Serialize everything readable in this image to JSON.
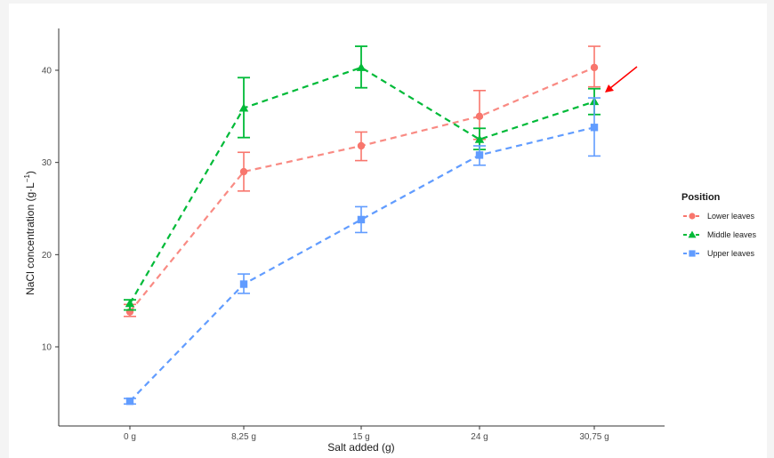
{
  "chart_data": {
    "type": "line",
    "xlabel": "Salt added (g)",
    "ylabel": "NaCl  concentration (g·L",
    "ylabel_sup": "−1",
    "ylabel_close": ")",
    "categories": [
      "0 g",
      "8,25 g",
      "15 g",
      "24 g",
      "30,75 g"
    ],
    "ylim": [
      4,
      45
    ],
    "yticks": [
      10,
      20,
      30,
      40
    ],
    "grid": false,
    "legend": {
      "title": "Position",
      "placement": "right"
    },
    "series": [
      {
        "name": "Lower leaves",
        "color": "#F8766D",
        "marker": "circle",
        "values": [
          13.8,
          29.0,
          31.8,
          35.0,
          40.3
        ],
        "err_low": [
          13.3,
          26.9,
          30.2,
          32.5,
          38.2
        ],
        "err_high": [
          14.6,
          31.1,
          33.3,
          37.8,
          42.6
        ]
      },
      {
        "name": "Middle leaves",
        "color": "#00BA38",
        "marker": "triangle",
        "values": [
          14.7,
          35.9,
          40.3,
          32.5,
          36.6
        ],
        "err_low": [
          14.0,
          32.7,
          38.1,
          31.4,
          35.2
        ],
        "err_high": [
          15.1,
          39.2,
          42.6,
          33.7,
          38.0
        ]
      },
      {
        "name": "Upper leaves",
        "color": "#619CFF",
        "marker": "square",
        "values": [
          4.1,
          16.8,
          23.8,
          30.8,
          33.8
        ],
        "err_low": [
          3.8,
          15.8,
          22.4,
          29.7,
          30.7
        ],
        "err_high": [
          4.4,
          17.9,
          25.2,
          31.8,
          37.0
        ]
      }
    ],
    "annotation": {
      "type": "arrow",
      "color": "#ff0000"
    }
  }
}
